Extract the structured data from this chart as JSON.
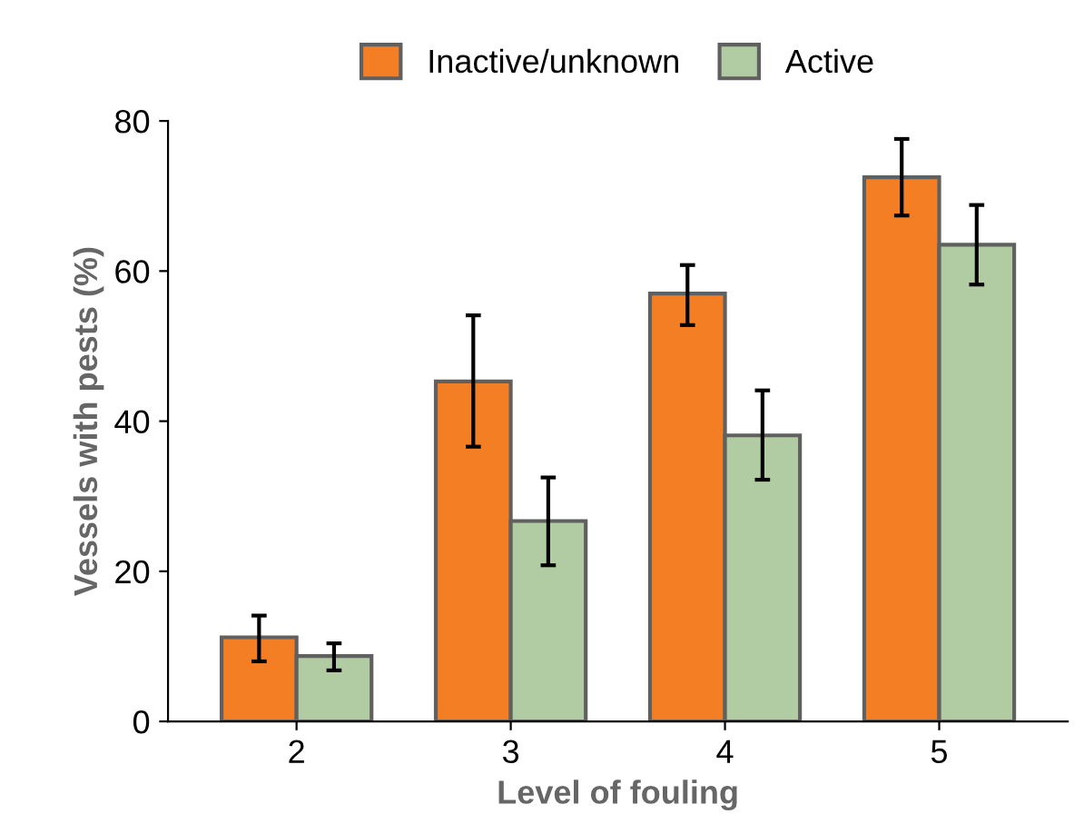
{
  "chart_data": {
    "type": "bar",
    "xlabel": "Level of fouling",
    "ylabel": "Vessels with pests (%)",
    "categories": [
      "2",
      "3",
      "4",
      "5"
    ],
    "series": [
      {
        "name": "Inactive/unknown",
        "color": "#f47e23",
        "values": [
          11.2,
          45.3,
          57.0,
          72.5
        ],
        "errors": [
          [
            8.0,
            14.1
          ],
          [
            36.6,
            54.1
          ],
          [
            52.8,
            60.8
          ],
          [
            67.4,
            77.6
          ]
        ]
      },
      {
        "name": "Active",
        "color": "#b1cba2",
        "values": [
          8.7,
          26.7,
          38.1,
          63.5
        ],
        "errors": [
          [
            6.8,
            10.4
          ],
          [
            20.8,
            32.5
          ],
          [
            32.2,
            44.1
          ],
          [
            58.2,
            68.8
          ]
        ]
      }
    ],
    "ylim": [
      0,
      80
    ],
    "yticks": [
      0,
      20,
      40,
      60,
      80
    ],
    "grid": false,
    "legend": "top"
  }
}
